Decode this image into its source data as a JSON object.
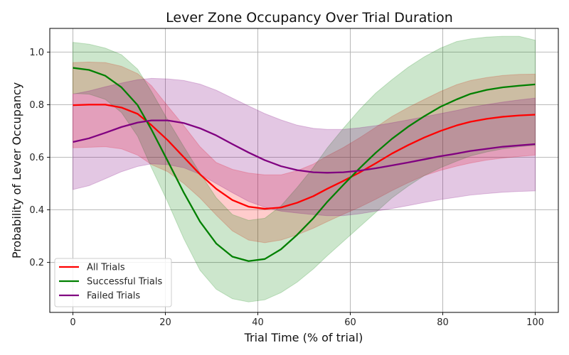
{
  "chart_data": {
    "type": "line",
    "title": "Lever Zone Occupancy Over Trial Duration",
    "xlabel": "Trial Time (% of trial)",
    "ylabel": "Probability of Lever Occupancy",
    "xlim": [
      -5,
      105
    ],
    "ylim": [
      0.01,
      1.09
    ],
    "xticks": [
      0,
      20,
      40,
      60,
      80,
      100
    ],
    "yticks": [
      0.2,
      0.4,
      0.6,
      0.8,
      1.0
    ],
    "grid": true,
    "legend_position": "lower-left",
    "x": [
      0,
      3.5,
      7,
      10.5,
      14,
      17,
      20.5,
      24,
      27.5,
      31,
      34.5,
      38,
      41.5,
      45,
      48.5,
      52,
      55,
      58.5,
      62,
      65.5,
      69,
      72.5,
      76,
      79.5,
      83,
      86,
      89.5,
      93,
      96.5,
      100
    ],
    "series": [
      {
        "name": "All Trials",
        "color": "#ff0000",
        "band_color": "#ff0000",
        "band_opacity": 0.2,
        "values": [
          0.798,
          0.8,
          0.8,
          0.789,
          0.765,
          0.722,
          0.665,
          0.6,
          0.535,
          0.48,
          0.437,
          0.412,
          0.404,
          0.409,
          0.427,
          0.452,
          0.48,
          0.51,
          0.542,
          0.577,
          0.614,
          0.646,
          0.675,
          0.7,
          0.721,
          0.735,
          0.746,
          0.754,
          0.759,
          0.762
        ],
        "lower": [
          0.636,
          0.638,
          0.64,
          0.632,
          0.608,
          0.572,
          0.545,
          0.5,
          0.445,
          0.38,
          0.32,
          0.285,
          0.275,
          0.285,
          0.305,
          0.33,
          0.355,
          0.383,
          0.41,
          0.44,
          0.473,
          0.503,
          0.53,
          0.55,
          0.566,
          0.578,
          0.589,
          0.597,
          0.603,
          0.608
        ],
        "upper": [
          0.96,
          0.962,
          0.96,
          0.946,
          0.918,
          0.872,
          0.795,
          0.72,
          0.64,
          0.58,
          0.554,
          0.54,
          0.533,
          0.533,
          0.549,
          0.574,
          0.605,
          0.637,
          0.674,
          0.714,
          0.755,
          0.789,
          0.82,
          0.85,
          0.876,
          0.892,
          0.903,
          0.911,
          0.915,
          0.916
        ]
      },
      {
        "name": "Successful Trials",
        "color": "#008000",
        "band_color": "#008000",
        "band_opacity": 0.2,
        "values": [
          0.94,
          0.932,
          0.91,
          0.866,
          0.798,
          0.705,
          0.586,
          0.465,
          0.355,
          0.272,
          0.222,
          0.205,
          0.213,
          0.25,
          0.305,
          0.368,
          0.43,
          0.495,
          0.558,
          0.617,
          0.67,
          0.716,
          0.756,
          0.792,
          0.82,
          0.841,
          0.856,
          0.866,
          0.872,
          0.877
        ],
        "lower": [
          0.843,
          0.84,
          0.82,
          0.77,
          0.68,
          0.56,
          0.43,
          0.29,
          0.17,
          0.098,
          0.062,
          0.05,
          0.058,
          0.085,
          0.125,
          0.175,
          0.225,
          0.28,
          0.335,
          0.39,
          0.445,
          0.49,
          0.53,
          0.56,
          0.585,
          0.605,
          0.62,
          0.632,
          0.64,
          0.645
        ],
        "upper": [
          1.037,
          1.03,
          1.015,
          0.99,
          0.935,
          0.85,
          0.742,
          0.64,
          0.54,
          0.446,
          0.382,
          0.36,
          0.368,
          0.415,
          0.485,
          0.561,
          0.635,
          0.71,
          0.781,
          0.844,
          0.895,
          0.942,
          0.982,
          1.015,
          1.04,
          1.05,
          1.057,
          1.06,
          1.06,
          1.045
        ]
      },
      {
        "name": "Failed Trials",
        "color": "#800080",
        "band_color": "#800080",
        "band_opacity": 0.22,
        "values": [
          0.658,
          0.672,
          0.693,
          0.715,
          0.732,
          0.74,
          0.74,
          0.73,
          0.71,
          0.683,
          0.65,
          0.618,
          0.589,
          0.566,
          0.551,
          0.543,
          0.541,
          0.543,
          0.549,
          0.558,
          0.569,
          0.58,
          0.592,
          0.604,
          0.614,
          0.624,
          0.632,
          0.64,
          0.645,
          0.65
        ],
        "lower": [
          0.477,
          0.492,
          0.518,
          0.545,
          0.565,
          0.575,
          0.572,
          0.56,
          0.535,
          0.5,
          0.465,
          0.432,
          0.41,
          0.395,
          0.388,
          0.382,
          0.378,
          0.378,
          0.385,
          0.395,
          0.405,
          0.416,
          0.428,
          0.439,
          0.448,
          0.456,
          0.462,
          0.467,
          0.47,
          0.472
        ],
        "upper": [
          0.84,
          0.852,
          0.868,
          0.882,
          0.895,
          0.9,
          0.898,
          0.892,
          0.878,
          0.855,
          0.825,
          0.795,
          0.766,
          0.742,
          0.722,
          0.71,
          0.706,
          0.706,
          0.712,
          0.72,
          0.731,
          0.742,
          0.754,
          0.766,
          0.778,
          0.79,
          0.8,
          0.81,
          0.818,
          0.825
        ]
      }
    ]
  }
}
